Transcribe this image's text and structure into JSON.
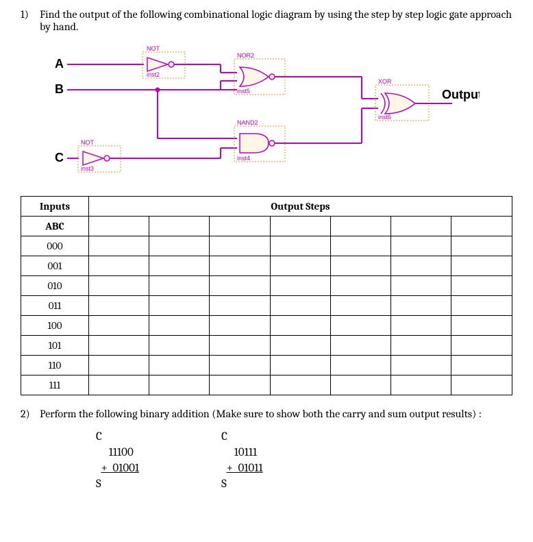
{
  "q1": {
    "number": "1)",
    "text": "Find the output of the following combinational logic diagram by using the step by step logic gate approach by hand."
  },
  "diagram": {
    "inputs": {
      "A": "A",
      "B": "B",
      "C": "C"
    },
    "output_label": "Output",
    "gates": {
      "not_a": {
        "label": "NOT",
        "inst": "inst2",
        "color": "#d040d0"
      },
      "not_c": {
        "label": "NOT",
        "inst": "inst3",
        "color": "#d040d0"
      },
      "nor2": {
        "label": "NOR2",
        "inst": "inst5",
        "color": "#d040d0"
      },
      "nand2": {
        "label": "NAND2",
        "inst": "inst4",
        "color": "#d040d0"
      },
      "xor": {
        "label": "XOR",
        "inst": "inst6",
        "color": "#d040d0"
      }
    },
    "wire_color": "#c000c0",
    "box_stroke": "#e09028",
    "gate_fill": "#fff6e6",
    "label_color": "#c000c0",
    "input_font": {
      "size": 18,
      "weight": "bold",
      "color": "#000"
    },
    "output_font": {
      "size": 18,
      "weight": "bold",
      "color": "#000"
    }
  },
  "table": {
    "header_inputs": "Inputs",
    "header_output": "Output Steps",
    "header_abc": "ABC",
    "rows": [
      "000",
      "001",
      "010",
      "011",
      "100",
      "101",
      "110",
      "111"
    ],
    "step_cols": 7
  },
  "q2": {
    "number": "2)",
    "text": "Perform the following binary addition (Make sure to show both the carry and sum output results) :"
  },
  "additions": [
    {
      "c": "C",
      "a": "11100",
      "b": "01001",
      "s": "S"
    },
    {
      "c": "C",
      "a": "10111",
      "b": "01011",
      "s": "S"
    }
  ]
}
